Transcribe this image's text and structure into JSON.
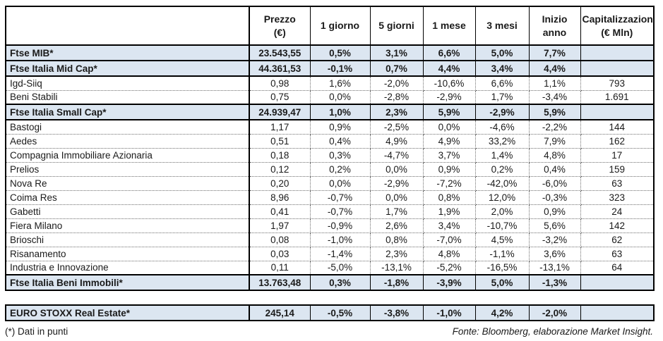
{
  "colors": {
    "highlight_bg": "#dce6f1",
    "border": "#000000",
    "dotted_border": "#6e6e6e",
    "text": "#1a1a1a"
  },
  "chart_data": {
    "type": "table",
    "columns": [
      "",
      "Prezzo\n(€)",
      "1 giorno",
      "5 giorni",
      "1 mese",
      "3 mesi",
      "Inizio anno",
      "Capitalizzazione\n(€ Mln)"
    ],
    "rows": [
      {
        "type": "index",
        "cells": [
          "Ftse MIB*",
          "23.543,55",
          "0,5%",
          "3,1%",
          "6,6%",
          "5,0%",
          "7,7%",
          ""
        ]
      },
      {
        "type": "index",
        "cells": [
          "Ftse Italia Mid Cap*",
          "44.361,53",
          "-0,1%",
          "0,7%",
          "4,4%",
          "3,4%",
          "4,4%",
          ""
        ]
      },
      {
        "type": "stock",
        "cells": [
          "Igd-Siiq",
          "0,98",
          "1,6%",
          "-2,0%",
          "-10,6%",
          "6,6%",
          "1,1%",
          "793"
        ]
      },
      {
        "type": "stock",
        "cells": [
          "Beni Stabili",
          "0,75",
          "0,0%",
          "-2,8%",
          "-2,9%",
          "1,7%",
          "-3,4%",
          "1.691"
        ]
      },
      {
        "type": "index",
        "cells": [
          "Ftse Italia Small Cap*",
          "24.939,47",
          "1,0%",
          "2,3%",
          "5,9%",
          "-2,9%",
          "5,9%",
          ""
        ]
      },
      {
        "type": "stock",
        "cells": [
          "Bastogi",
          "1,17",
          "0,9%",
          "-2,5%",
          "0,0%",
          "-4,6%",
          "-2,2%",
          "144"
        ]
      },
      {
        "type": "stock",
        "cells": [
          "Aedes",
          "0,51",
          "0,4%",
          "4,9%",
          "4,9%",
          "33,2%",
          "7,9%",
          "162"
        ]
      },
      {
        "type": "stock",
        "cells": [
          "Compagnia Immobiliare Azionaria",
          "0,18",
          "0,3%",
          "-4,7%",
          "3,7%",
          "1,4%",
          "4,8%",
          "17"
        ]
      },
      {
        "type": "stock",
        "cells": [
          "Prelios",
          "0,12",
          "0,2%",
          "0,0%",
          "0,9%",
          "0,2%",
          "0,4%",
          "159"
        ]
      },
      {
        "type": "stock",
        "cells": [
          "Nova Re",
          "0,20",
          "0,0%",
          "-2,9%",
          "-7,2%",
          "-42,0%",
          "-6,0%",
          "63"
        ]
      },
      {
        "type": "stock",
        "cells": [
          "Coima Res",
          "8,96",
          "-0,7%",
          "0,0%",
          "0,8%",
          "12,0%",
          "-0,3%",
          "323"
        ]
      },
      {
        "type": "stock",
        "cells": [
          "Gabetti",
          "0,41",
          "-0,7%",
          "1,7%",
          "1,9%",
          "2,0%",
          "0,9%",
          "24"
        ]
      },
      {
        "type": "stock",
        "cells": [
          "Fiera Milano",
          "1,97",
          "-0,9%",
          "2,6%",
          "3,4%",
          "-10,7%",
          "5,6%",
          "142"
        ]
      },
      {
        "type": "stock",
        "cells": [
          "Brioschi",
          "0,08",
          "-1,0%",
          "0,8%",
          "-7,0%",
          "4,5%",
          "-3,2%",
          "62"
        ]
      },
      {
        "type": "stock",
        "cells": [
          "Risanamento",
          "0,03",
          "-1,4%",
          "2,3%",
          "4,8%",
          "-1,1%",
          "3,6%",
          "63"
        ]
      },
      {
        "type": "stock",
        "cells": [
          "Industria e Innovazione",
          "0,11",
          "-5,0%",
          "-13,1%",
          "-5,2%",
          "-16,5%",
          "-13,1%",
          "64"
        ]
      },
      {
        "type": "index",
        "cells": [
          "Ftse Italia Beni Immobili*",
          "13.763,48",
          "0,3%",
          "-1,8%",
          "-3,9%",
          "5,0%",
          "-1,3%",
          ""
        ]
      }
    ],
    "detached_rows": [
      {
        "type": "index",
        "cells": [
          "EURO STOXX Real Estate*",
          "245,14",
          "-0,5%",
          "-3,8%",
          "-1,0%",
          "4,2%",
          "-2,0%",
          ""
        ]
      }
    ]
  },
  "footer": {
    "left": "(*) Dati in punti",
    "right": "Fonte: Bloomberg, elaborazione Market Insight."
  }
}
